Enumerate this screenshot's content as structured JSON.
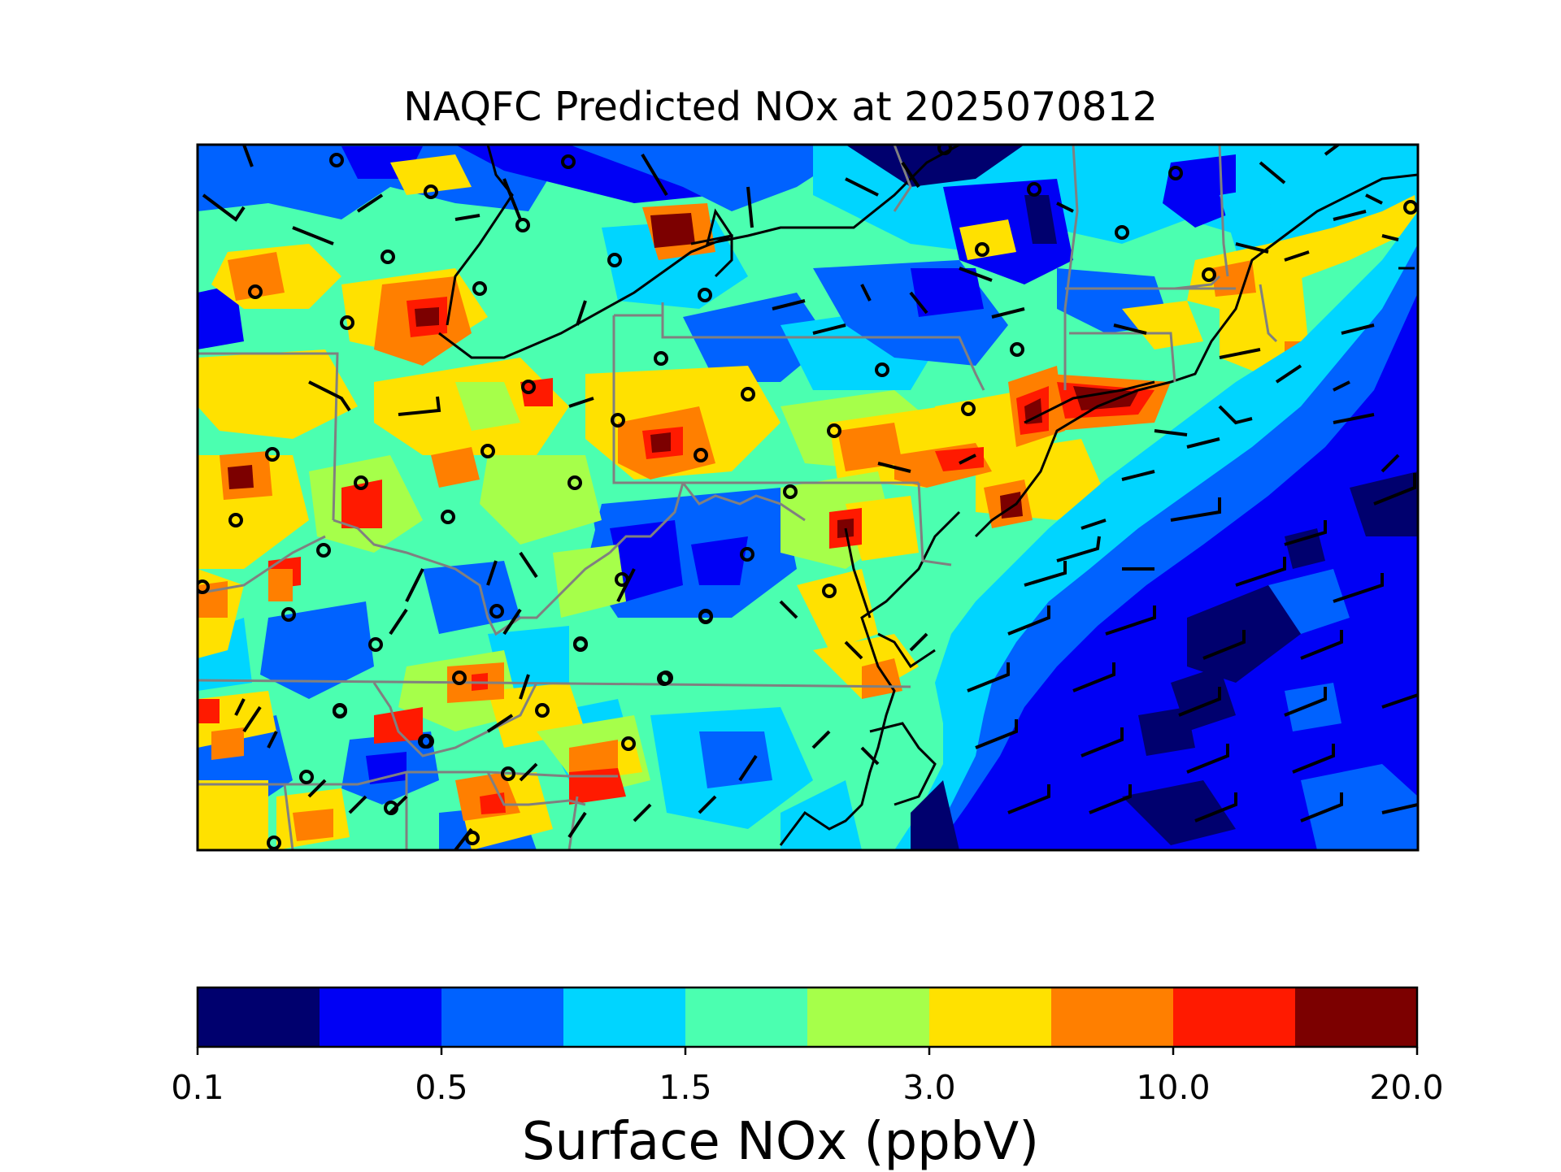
{
  "title": "NAQFC Predicted NOx at 2025070812",
  "colorbar": {
    "label": "Surface NOx (ppbV)",
    "ticks": [
      "0.1",
      "0.5",
      "1.5",
      "3.0",
      "10.0",
      "20.0"
    ],
    "colors": [
      "#00006e",
      "#0000f5",
      "#0062ff",
      "#00d5ff",
      "#4bffb0",
      "#a6ff4a",
      "#ffe100",
      "#ff7f00",
      "#ff1a00",
      "#7c0000"
    ]
  },
  "map": {
    "ocean_color": "#0000f5",
    "state_border_color": "#808080",
    "coast_color": "#000000",
    "wind_barb_color": "#000000",
    "station_marker": "open-circle"
  }
}
